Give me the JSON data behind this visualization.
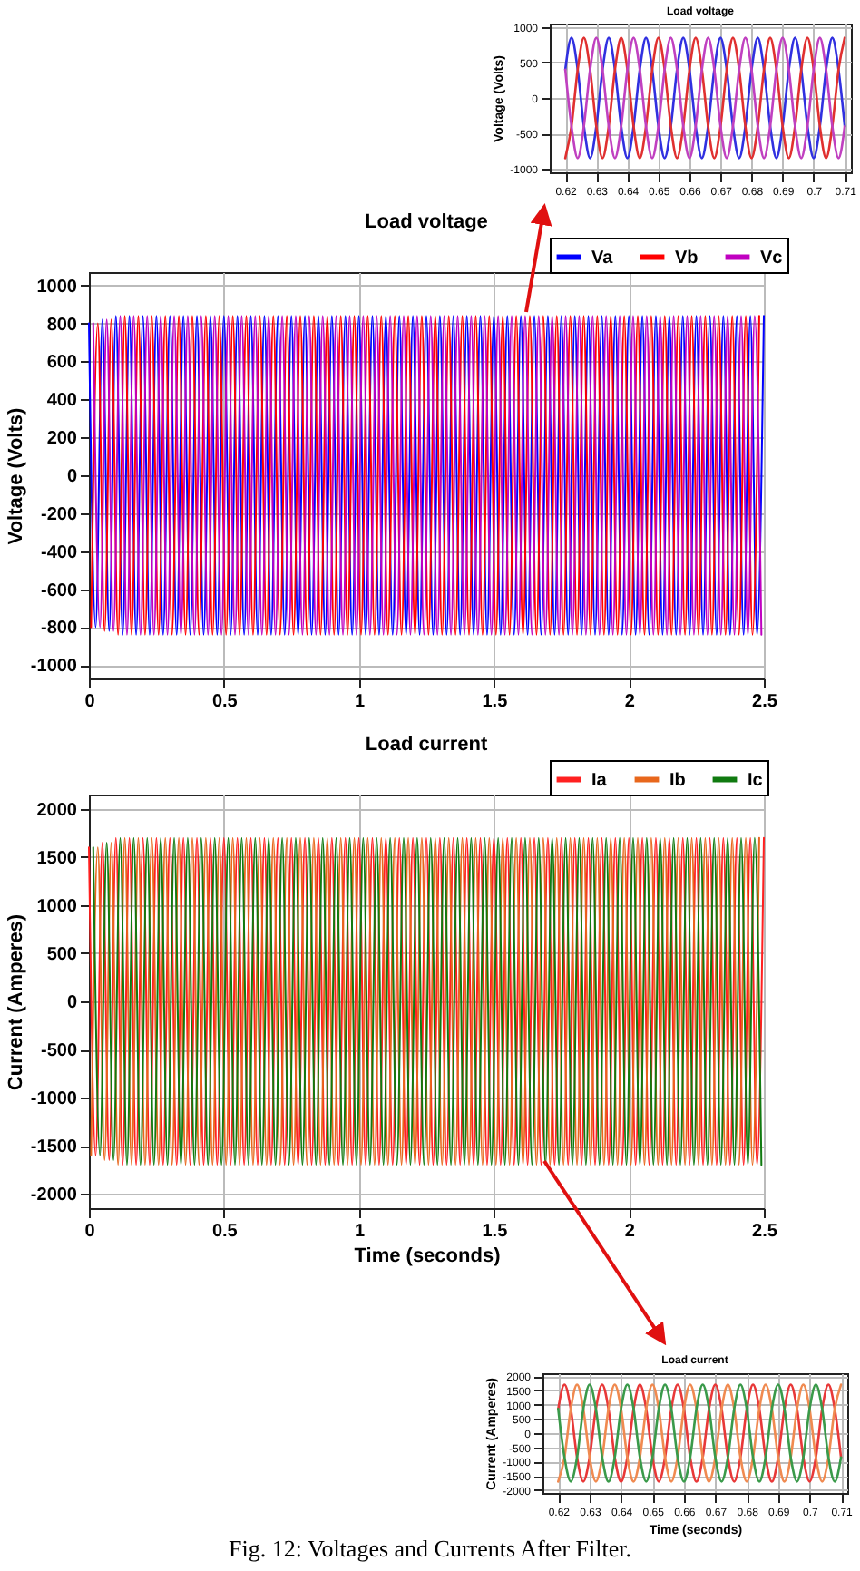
{
  "chart_data": [
    {
      "type": "line",
      "title": "Load voltage",
      "ylabel": "Voltage (Volts)",
      "x": [
        0.62,
        0.622,
        0.624,
        0.626,
        0.628,
        0.63,
        0.632,
        0.634,
        0.636,
        0.638,
        0.64,
        0.642,
        0.644,
        0.646,
        0.648,
        0.65,
        0.652,
        0.654,
        0.656,
        0.658,
        0.66,
        0.662,
        0.664,
        0.666,
        0.668,
        0.67,
        0.672,
        0.674,
        0.676,
        0.678,
        0.68,
        0.682,
        0.684,
        0.686,
        0.688,
        0.69,
        0.692,
        0.694,
        0.696,
        0.698,
        0.7,
        0.702,
        0.704,
        0.706,
        0.708,
        0.71
      ],
      "series": [
        {
          "color": "#3030e0",
          "values": [
            400,
            850,
            400,
            -400,
            -850,
            -400,
            400,
            850,
            400,
            -400,
            -850,
            -400,
            400,
            850,
            400,
            -400,
            -850,
            -400,
            400,
            850,
            400,
            -400,
            -850,
            -400,
            400,
            850,
            400,
            -400,
            -850,
            -400,
            400,
            850,
            400,
            -400,
            -850,
            -400,
            400,
            850,
            400,
            -400,
            -850,
            -400,
            400,
            850,
            400,
            -400
          ]
        },
        {
          "color": "#e03030",
          "values": [
            -850,
            -400,
            400,
            850,
            400,
            -400,
            -850,
            -400,
            400,
            850,
            400,
            -400,
            -850,
            -400,
            400,
            850,
            400,
            -400,
            -850,
            -400,
            400,
            850,
            400,
            -400,
            -850,
            -400,
            400,
            850,
            400,
            -400,
            -850,
            -400,
            400,
            850,
            400,
            -400,
            -850,
            -400,
            400,
            850,
            400,
            -400,
            -850,
            -400,
            400,
            850
          ]
        },
        {
          "color": "#c040c0",
          "values": [
            400,
            -400,
            -850,
            -400,
            400,
            850,
            400,
            -400,
            -850,
            -400,
            400,
            850,
            400,
            -400,
            -850,
            -400,
            400,
            850,
            400,
            -400,
            -850,
            -400,
            400,
            850,
            400,
            -400,
            -850,
            -400,
            400,
            850,
            400,
            -400,
            -850,
            -400,
            400,
            850,
            400,
            -400,
            -850,
            -400,
            400,
            850,
            400,
            -400,
            -850,
            -400
          ]
        }
      ],
      "xlim": [
        0.615,
        0.712
      ],
      "xticks": [
        0.62,
        0.63,
        0.64,
        0.65,
        0.66,
        0.67,
        0.68,
        0.69,
        0.7,
        0.71
      ],
      "ylim": [
        -1050,
        1050
      ],
      "yticks": [
        -1000,
        -500,
        0,
        500,
        1000
      ],
      "grid": true
    },
    {
      "type": "line",
      "title": "Load voltage",
      "ylabel": "Voltage (Volts)",
      "legend": "top right",
      "grid": true,
      "xlim": [
        0,
        2.5
      ],
      "xticks": [
        0,
        0.5,
        1,
        1.5,
        2,
        2.5
      ],
      "ylim": [
        -1070,
        1070
      ],
      "yticks": [
        -1000,
        -800,
        -600,
        -400,
        -200,
        0,
        200,
        400,
        600,
        800,
        1000
      ],
      "x": [
        0,
        0.025,
        0.05,
        0.075,
        0.1,
        0.125,
        0.15,
        0.175,
        0.2,
        0.225,
        0.25,
        0.275,
        0.3,
        0.325,
        0.35,
        0.375,
        0.4,
        0.425,
        0.45,
        0.475,
        0.5,
        0.525,
        0.55,
        0.575,
        0.6,
        0.625,
        0.65,
        0.675,
        0.7,
        0.725,
        0.75,
        0.775,
        0.8,
        0.825,
        0.85,
        0.875,
        0.9,
        0.925,
        0.95,
        0.975,
        1,
        1.025,
        1.05,
        1.075,
        1.1,
        1.125,
        1.15,
        1.175,
        1.2,
        1.225,
        1.25,
        1.275,
        1.3,
        1.325,
        1.35,
        1.375,
        1.4,
        1.425,
        1.45,
        1.475,
        1.5,
        1.525,
        1.55,
        1.575,
        1.6,
        1.625,
        1.65,
        1.675,
        1.7,
        1.725,
        1.75,
        1.775,
        1.8,
        1.825,
        1.85,
        1.875,
        1.9,
        1.925,
        1.95,
        1.975,
        2,
        2.025,
        2.05,
        2.075,
        2.1,
        2.125,
        2.15,
        2.175,
        2.2,
        2.225,
        2.25,
        2.275,
        2.3,
        2.325,
        2.35,
        2.375,
        2.4,
        2.425,
        2.45,
        2.475,
        2.5
      ],
      "series": [
        {
          "name": "Va",
          "color": "#0000ff",
          "values": [
            800,
            -800,
            820,
            -820,
            840,
            -840,
            840,
            -840,
            840,
            -840,
            840,
            -840,
            840,
            -840,
            840,
            -840,
            840,
            -840,
            840,
            -840,
            840,
            -840,
            840,
            -840,
            840,
            -840,
            840,
            -840,
            840,
            -840,
            840,
            -840,
            840,
            -840,
            840,
            -840,
            840,
            -840,
            840,
            -840,
            840,
            -840,
            840,
            -840,
            840,
            -840,
            840,
            -840,
            840,
            -840,
            840,
            -840,
            840,
            -840,
            840,
            -840,
            840,
            -840,
            840,
            -840,
            840,
            -840,
            840,
            -840,
            840,
            -840,
            840,
            -840,
            840,
            -840,
            840,
            -840,
            840,
            -840,
            840,
            -840,
            840,
            -840,
            840,
            -840,
            840,
            -840,
            840,
            -840,
            840,
            -840,
            840,
            -840,
            840,
            -840,
            840,
            -840,
            840,
            -840,
            840,
            -840,
            840,
            -840,
            840,
            -840,
            840
          ]
        },
        {
          "name": "Vb",
          "color": "#ff0000",
          "x": [
            0.008,
            0.033,
            0.058,
            0.083,
            0.108,
            0.133,
            0.158,
            0.183,
            0.208,
            0.233,
            0.258,
            0.283,
            0.308,
            0.333,
            0.358,
            0.383,
            0.408,
            0.433,
            0.458,
            0.483,
            0.508,
            0.533,
            0.558,
            0.583,
            0.608,
            0.633,
            0.658,
            0.683,
            0.708,
            0.733,
            0.758,
            0.783,
            0.808,
            0.833,
            0.858,
            0.883,
            0.908,
            0.933,
            0.958,
            0.983,
            1.008,
            1.033,
            1.058,
            1.083,
            1.108,
            1.133,
            1.158,
            1.183,
            1.208,
            1.233,
            1.258,
            1.283,
            1.308,
            1.333,
            1.358,
            1.383,
            1.408,
            1.433,
            1.458,
            1.483,
            1.508,
            1.533,
            1.558,
            1.583,
            1.608,
            1.633,
            1.658,
            1.683,
            1.708,
            1.733,
            1.758,
            1.783,
            1.808,
            1.833,
            1.858,
            1.883,
            1.908,
            1.933,
            1.958,
            1.983,
            2.008,
            2.033,
            2.058,
            2.083,
            2.108,
            2.133,
            2.158,
            2.183,
            2.208,
            2.233,
            2.258,
            2.283,
            2.308,
            2.333,
            2.358,
            2.383,
            2.408,
            2.433,
            2.458,
            2.483
          ],
          "values": [
            -800,
            800,
            -820,
            820,
            -840,
            840,
            -840,
            840,
            -840,
            840,
            -840,
            840,
            -840,
            840,
            -840,
            840,
            -840,
            840,
            -840,
            840,
            -840,
            840,
            -840,
            840,
            -840,
            840,
            -840,
            840,
            -840,
            840,
            -840,
            840,
            -840,
            840,
            -840,
            840,
            -840,
            840,
            -840,
            840,
            -840,
            840,
            -840,
            840,
            -840,
            840,
            -840,
            840,
            -840,
            840,
            -840,
            840,
            -840,
            840,
            -840,
            840,
            -840,
            840,
            -840,
            840,
            -840,
            840,
            -840,
            840,
            -840,
            840,
            -840,
            840,
            -840,
            840,
            -840,
            840,
            -840,
            840,
            -840,
            840,
            -840,
            840,
            -840,
            840,
            -840,
            840,
            -840,
            840,
            -840,
            840,
            -840,
            840,
            -840,
            840,
            -840,
            840,
            -840,
            840,
            -840,
            840,
            -840,
            840,
            -840,
            840
          ]
        },
        {
          "name": "Vc",
          "color": "#c000c0",
          "x": [
            0.016,
            0.041,
            0.066,
            0.091,
            0.116,
            0.141,
            0.166,
            0.191,
            0.216,
            0.241,
            0.266,
            0.291,
            0.316,
            0.341,
            0.366,
            0.391,
            0.416,
            0.441,
            0.466,
            0.491,
            0.516,
            0.541,
            0.566,
            0.591,
            0.616,
            0.641,
            0.666,
            0.691,
            0.716,
            0.741,
            0.766,
            0.791,
            0.816,
            0.841,
            0.866,
            0.891,
            0.916,
            0.941,
            0.966,
            0.991,
            1.016,
            1.041,
            1.066,
            1.091,
            1.116,
            1.141,
            1.166,
            1.191,
            1.216,
            1.241,
            1.266,
            1.291,
            1.316,
            1.341,
            1.366,
            1.391,
            1.416,
            1.441,
            1.466,
            1.491,
            1.516,
            1.541,
            1.566,
            1.591,
            1.616,
            1.641,
            1.666,
            1.691,
            1.716,
            1.741,
            1.766,
            1.791,
            1.816,
            1.841,
            1.866,
            1.891,
            1.916,
            1.941,
            1.966,
            1.991,
            2.016,
            2.041,
            2.066,
            2.091,
            2.116,
            2.141,
            2.166,
            2.191,
            2.216,
            2.241,
            2.266,
            2.291,
            2.316,
            2.341,
            2.366,
            2.391,
            2.416,
            2.441,
            2.466,
            2.491
          ],
          "values": [
            800,
            -800,
            820,
            -820,
            840,
            -840,
            840,
            -840,
            840,
            -840,
            840,
            -840,
            840,
            -840,
            840,
            -840,
            840,
            -840,
            840,
            -840,
            840,
            -840,
            840,
            -840,
            840,
            -840,
            840,
            -840,
            840,
            -840,
            840,
            -840,
            840,
            -840,
            840,
            -840,
            840,
            -840,
            840,
            -840,
            840,
            -840,
            840,
            -840,
            840,
            -840,
            840,
            -840,
            840,
            -840,
            840,
            -840,
            840,
            -840,
            840,
            -840,
            840,
            -840,
            840,
            -840,
            840,
            -840,
            840,
            -840,
            840,
            -840,
            840,
            -840,
            840,
            -840,
            840,
            -840,
            840,
            -840,
            840,
            -840,
            840,
            -840,
            840,
            -840,
            840,
            -840,
            840,
            -840,
            840,
            -840,
            840,
            -840,
            840,
            -840,
            840,
            -840,
            840,
            -840,
            840,
            -840,
            840,
            -840,
            840,
            -840
          ]
        }
      ]
    },
    {
      "type": "line",
      "title": "Load current",
      "xlabel": "Time (seconds)",
      "ylabel": "Current (Amperes)",
      "legend": "top right",
      "grid": true,
      "xlim": [
        0,
        2.5
      ],
      "xticks": [
        0,
        0.5,
        1,
        1.5,
        2,
        2.5
      ],
      "ylim": [
        -2150,
        2150
      ],
      "yticks": [
        -2000,
        -1500,
        -1000,
        -500,
        0,
        500,
        1000,
        1500,
        2000
      ],
      "x": [
        0,
        0.025,
        0.05,
        0.075,
        0.1,
        0.125,
        0.15,
        0.175,
        0.2,
        0.225,
        0.25,
        0.275,
        0.3,
        0.325,
        0.35,
        0.375,
        0.4,
        0.425,
        0.45,
        0.475,
        0.5,
        0.525,
        0.55,
        0.575,
        0.6,
        0.625,
        0.65,
        0.675,
        0.7,
        0.725,
        0.75,
        0.775,
        0.8,
        0.825,
        0.85,
        0.875,
        0.9,
        0.925,
        0.95,
        0.975,
        1,
        1.025,
        1.05,
        1.075,
        1.1,
        1.125,
        1.15,
        1.175,
        1.2,
        1.225,
        1.25,
        1.275,
        1.3,
        1.325,
        1.35,
        1.375,
        1.4,
        1.425,
        1.45,
        1.475,
        1.5,
        1.525,
        1.55,
        1.575,
        1.6,
        1.625,
        1.65,
        1.675,
        1.7,
        1.725,
        1.75,
        1.775,
        1.8,
        1.825,
        1.85,
        1.875,
        1.9,
        1.925,
        1.95,
        1.975,
        2,
        2.025,
        2.05,
        2.075,
        2.1,
        2.125,
        2.15,
        2.175,
        2.2,
        2.225,
        2.25,
        2.275,
        2.3,
        2.325,
        2.35,
        2.375,
        2.4,
        2.425,
        2.45,
        2.475,
        2.5
      ],
      "series": [
        {
          "name": "Ia",
          "color": "#ff2020",
          "values": [
            1600,
            -1600,
            1650,
            -1650,
            1700,
            -1700,
            1700,
            -1700,
            1700,
            -1700,
            1700,
            -1700,
            1700,
            -1700,
            1700,
            -1700,
            1700,
            -1700,
            1700,
            -1700,
            1700,
            -1700,
            1700,
            -1700,
            1700,
            -1700,
            1700,
            -1700,
            1700,
            -1700,
            1700,
            -1700,
            1700,
            -1700,
            1700,
            -1700,
            1700,
            -1700,
            1700,
            -1700,
            1700,
            -1700,
            1700,
            -1700,
            1700,
            -1700,
            1700,
            -1700,
            1700,
            -1700,
            1700,
            -1700,
            1700,
            -1700,
            1700,
            -1700,
            1700,
            -1700,
            1700,
            -1700,
            1700,
            -1700,
            1700,
            -1700,
            1700,
            -1700,
            1700,
            -1700,
            1700,
            -1700,
            1700,
            -1700,
            1700,
            -1700,
            1700,
            -1700,
            1700,
            -1700,
            1700,
            -1700,
            1700,
            -1700,
            1700,
            -1700,
            1700,
            -1700,
            1700,
            -1700,
            1700,
            -1700,
            1700,
            -1700,
            1700,
            -1700,
            1700,
            -1700,
            1700,
            -1700,
            1700,
            -1700,
            1700
          ]
        },
        {
          "name": "Ib",
          "color": "#e8671c",
          "x": [
            0.008,
            0.033,
            0.058,
            0.083,
            0.108,
            0.133,
            0.158,
            0.183,
            0.208,
            0.233,
            0.258,
            0.283,
            0.308,
            0.333,
            0.358,
            0.383,
            0.408,
            0.433,
            0.458,
            0.483,
            0.508,
            0.533,
            0.558,
            0.583,
            0.608,
            0.633,
            0.658,
            0.683,
            0.708,
            0.733,
            0.758,
            0.783,
            0.808,
            0.833,
            0.858,
            0.883,
            0.908,
            0.933,
            0.958,
            0.983,
            1.008,
            1.033,
            1.058,
            1.083,
            1.108,
            1.133,
            1.158,
            1.183,
            1.208,
            1.233,
            1.258,
            1.283,
            1.308,
            1.333,
            1.358,
            1.383,
            1.408,
            1.433,
            1.458,
            1.483,
            1.508,
            1.533,
            1.558,
            1.583,
            1.608,
            1.633,
            1.658,
            1.683,
            1.708,
            1.733,
            1.758,
            1.783,
            1.808,
            1.833,
            1.858,
            1.883,
            1.908,
            1.933,
            1.958,
            1.983,
            2.008,
            2.033,
            2.058,
            2.083,
            2.108,
            2.133,
            2.158,
            2.183,
            2.208,
            2.233,
            2.258,
            2.283,
            2.308,
            2.333,
            2.358,
            2.383,
            2.408,
            2.433,
            2.458,
            2.483
          ],
          "values": [
            -1600,
            1600,
            -1650,
            1650,
            -1700,
            1700,
            -1700,
            1700,
            -1700,
            1700,
            -1700,
            1700,
            -1700,
            1700,
            -1700,
            1700,
            -1700,
            1700,
            -1700,
            1700,
            -1700,
            1700,
            -1700,
            1700,
            -1700,
            1700,
            -1700,
            1700,
            -1700,
            1700,
            -1700,
            1700,
            -1700,
            1700,
            -1700,
            1700,
            -1700,
            1700,
            -1700,
            1700,
            -1700,
            1700,
            -1700,
            1700,
            -1700,
            1700,
            -1700,
            1700,
            -1700,
            1700,
            -1700,
            1700,
            -1700,
            1700,
            -1700,
            1700,
            -1700,
            1700,
            -1700,
            1700,
            -1700,
            1700,
            -1700,
            1700,
            -1700,
            1700,
            -1700,
            1700,
            -1700,
            1700,
            -1700,
            1700,
            -1700,
            1700,
            -1700,
            1700,
            -1700,
            1700,
            -1700,
            1700,
            -1700,
            1700,
            -1700,
            1700,
            -1700,
            1700,
            -1700,
            1700,
            -1700,
            1700,
            -1700,
            1700,
            -1700,
            1700,
            -1700,
            1700,
            -1700,
            1700,
            -1700,
            1700
          ]
        },
        {
          "name": "Ic",
          "color": "#107a10",
          "x": [
            0.016,
            0.041,
            0.066,
            0.091,
            0.116,
            0.141,
            0.166,
            0.191,
            0.216,
            0.241,
            0.266,
            0.291,
            0.316,
            0.341,
            0.366,
            0.391,
            0.416,
            0.441,
            0.466,
            0.491,
            0.516,
            0.541,
            0.566,
            0.591,
            0.616,
            0.641,
            0.666,
            0.691,
            0.716,
            0.741,
            0.766,
            0.791,
            0.816,
            0.841,
            0.866,
            0.891,
            0.916,
            0.941,
            0.966,
            0.991,
            1.016,
            1.041,
            1.066,
            1.091,
            1.116,
            1.141,
            1.166,
            1.191,
            1.216,
            1.241,
            1.266,
            1.291,
            1.316,
            1.341,
            1.366,
            1.391,
            1.416,
            1.441,
            1.466,
            1.491,
            1.516,
            1.541,
            1.566,
            1.591,
            1.616,
            1.641,
            1.666,
            1.691,
            1.716,
            1.741,
            1.766,
            1.791,
            1.816,
            1.841,
            1.866,
            1.891,
            1.916,
            1.941,
            1.966,
            1.991,
            2.016,
            2.041,
            2.066,
            2.091,
            2.116,
            2.141,
            2.166,
            2.191,
            2.216,
            2.241,
            2.266,
            2.291,
            2.316,
            2.341,
            2.366,
            2.391,
            2.416,
            2.441,
            2.466,
            2.491
          ],
          "values": [
            1600,
            -1600,
            1650,
            -1650,
            1700,
            -1700,
            1700,
            -1700,
            1700,
            -1700,
            1700,
            -1700,
            1700,
            -1700,
            1700,
            -1700,
            1700,
            -1700,
            1700,
            -1700,
            1700,
            -1700,
            1700,
            -1700,
            1700,
            -1700,
            1700,
            -1700,
            1700,
            -1700,
            1700,
            -1700,
            1700,
            -1700,
            1700,
            -1700,
            1700,
            -1700,
            1700,
            -1700,
            1700,
            -1700,
            1700,
            -1700,
            1700,
            -1700,
            1700,
            -1700,
            1700,
            -1700,
            1700,
            -1700,
            1700,
            -1700,
            1700,
            -1700,
            1700,
            -1700,
            1700,
            -1700,
            1700,
            -1700,
            1700,
            -1700,
            1700,
            -1700,
            1700,
            -1700,
            1700,
            -1700,
            1700,
            -1700,
            1700,
            -1700,
            1700,
            -1700,
            1700,
            -1700,
            1700,
            -1700,
            1700,
            -1700,
            1700,
            -1700,
            1700,
            -1700,
            1700,
            -1700,
            1700,
            -1700,
            1700,
            -1700,
            1700,
            -1700,
            1700,
            -1700,
            1700,
            -1700,
            1700,
            -1700
          ]
        }
      ]
    },
    {
      "type": "line",
      "title": "Load current",
      "xlabel": "Time (seconds)",
      "ylabel": "Current (Amperes)",
      "x": [
        0.62,
        0.622,
        0.624,
        0.626,
        0.628,
        0.63,
        0.632,
        0.634,
        0.636,
        0.638,
        0.64,
        0.642,
        0.644,
        0.646,
        0.648,
        0.65,
        0.652,
        0.654,
        0.656,
        0.658,
        0.66,
        0.662,
        0.664,
        0.666,
        0.668,
        0.67,
        0.672,
        0.674,
        0.676,
        0.678,
        0.68,
        0.682,
        0.684,
        0.686,
        0.688,
        0.69,
        0.692,
        0.694,
        0.696,
        0.698,
        0.7,
        0.702,
        0.704,
        0.706,
        0.708,
        0.71
      ],
      "series": [
        {
          "color": "#e83838",
          "values": [
            850,
            1700,
            850,
            -850,
            -1700,
            -850,
            850,
            1700,
            850,
            -850,
            -1700,
            -850,
            850,
            1700,
            850,
            -850,
            -1700,
            -850,
            850,
            1700,
            850,
            -850,
            -1700,
            -850,
            850,
            1700,
            850,
            -850,
            -1700,
            -850,
            850,
            1700,
            850,
            -850,
            -1700,
            -850,
            850,
            1700,
            850,
            -850,
            -1700,
            -850,
            850,
            1700,
            850,
            -850
          ]
        },
        {
          "color": "#f08a50",
          "values": [
            -1700,
            -850,
            850,
            1700,
            850,
            -850,
            -1700,
            -850,
            850,
            1700,
            850,
            -850,
            -1700,
            -850,
            850,
            1700,
            850,
            -850,
            -1700,
            -850,
            850,
            1700,
            850,
            -850,
            -1700,
            -850,
            850,
            1700,
            850,
            -850,
            -1700,
            -850,
            850,
            1700,
            850,
            -850,
            -1700,
            -850,
            850,
            1700,
            850,
            -850,
            -1700,
            -850,
            850,
            1700
          ]
        },
        {
          "color": "#3a9a4a",
          "values": [
            850,
            -850,
            -1700,
            -850,
            850,
            1700,
            850,
            -850,
            -1700,
            -850,
            850,
            1700,
            850,
            -850,
            -1700,
            -850,
            850,
            1700,
            850,
            -850,
            -1700,
            -850,
            850,
            1700,
            850,
            -850,
            -1700,
            -850,
            850,
            1700,
            850,
            -850,
            -1700,
            -850,
            850,
            1700,
            850,
            -850,
            -1700,
            -850,
            850,
            1700,
            850,
            -850,
            -1700,
            -850
          ]
        }
      ],
      "xlim": [
        0.615,
        0.712
      ],
      "xticks": [
        0.62,
        0.63,
        0.64,
        0.65,
        0.66,
        0.67,
        0.68,
        0.69,
        0.7,
        0.71
      ],
      "ylim": [
        -2100,
        2100
      ],
      "yticks": [
        -2000,
        -1500,
        -1000,
        -500,
        0,
        500,
        1000,
        1500,
        2000
      ],
      "grid": true,
      "annotations": [
        "Fig. 12: Voltages and Currents After Filter."
      ]
    }
  ]
}
